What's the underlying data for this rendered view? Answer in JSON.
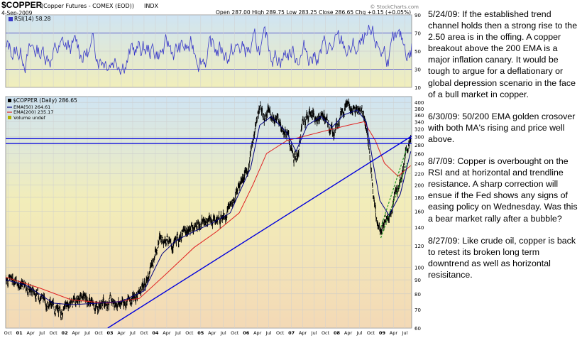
{
  "header": {
    "symbol": "$COPPER",
    "name": "(Copper Futures - COMEX (EOD))",
    "exchange": "INDX",
    "date": "4-Sep-2009",
    "quote": "Open 287.00  High 289.75  Low 283.25  Close 286.65  Chg +0.15 (+0.05%)",
    "watermark": "© StockCharts.com"
  },
  "chart_data": [
    {
      "type": "line",
      "panel": "RSI",
      "label": "RSI(14) 58.28",
      "series": [
        {
          "name": "RSI(14)",
          "last": 58.28
        }
      ],
      "ylim": [
        10,
        90
      ],
      "yticks": [
        10,
        30,
        50,
        70,
        90
      ],
      "reference_lines": [
        30,
        70
      ],
      "color": "#3333cc",
      "background": [
        "#cfe3f2",
        "#f2eeba"
      ]
    },
    {
      "type": "line",
      "panel": "price",
      "title": "$COPPER (Daily) 286.65",
      "legend": [
        {
          "label": "EMA(50) 264.61",
          "color": "#000080"
        },
        {
          "label": "EMA(200) 235.17",
          "color": "#e02020"
        },
        {
          "label": "Volume undef",
          "color": "#b0b000"
        }
      ],
      "legend_position": "top-left",
      "y_scale": "log",
      "ylim": [
        60,
        420
      ],
      "yticks": [
        60,
        70,
        80,
        90,
        100,
        120,
        140,
        160,
        180,
        200,
        220,
        240,
        260,
        280,
        300,
        320,
        340,
        360,
        380,
        400
      ],
      "x_labels": [
        "Oct",
        "01",
        "Apr",
        "Jul",
        "Oct",
        "02",
        "Apr",
        "Jul",
        "Oct",
        "03",
        "Apr",
        "Jul",
        "Oct",
        "04",
        "Apr",
        "Jul",
        "Oct",
        "05",
        "Apr",
        "Jul",
        "Oct",
        "06",
        "Apr",
        "Jul",
        "Oct",
        "07",
        "Apr",
        "Jul",
        "Oct",
        "08",
        "Apr",
        "Jul",
        "Oct",
        "09",
        "Apr",
        "Jul"
      ],
      "x_range": [
        2000.75,
        2009.7
      ],
      "price_points": [
        [
          2000.75,
          92
        ],
        [
          2000.95,
          90
        ],
        [
          2001.15,
          85
        ],
        [
          2001.45,
          80
        ],
        [
          2001.75,
          73
        ],
        [
          2001.95,
          68
        ],
        [
          2002.15,
          74
        ],
        [
          2002.45,
          78
        ],
        [
          2002.75,
          72
        ],
        [
          2003.0,
          75
        ],
        [
          2003.3,
          74
        ],
        [
          2003.6,
          78
        ],
        [
          2003.85,
          88
        ],
        [
          2003.95,
          100
        ],
        [
          2004.15,
          128
        ],
        [
          2004.3,
          130
        ],
        [
          2004.4,
          118
        ],
        [
          2004.6,
          130
        ],
        [
          2004.85,
          140
        ],
        [
          2005.0,
          143
        ],
        [
          2005.2,
          148
        ],
        [
          2005.45,
          150
        ],
        [
          2005.6,
          158
        ],
        [
          2005.8,
          180
        ],
        [
          2005.95,
          210
        ],
        [
          2006.1,
          230
        ],
        [
          2006.25,
          320
        ],
        [
          2006.35,
          390
        ],
        [
          2006.45,
          350
        ],
        [
          2006.55,
          370
        ],
        [
          2006.7,
          350
        ],
        [
          2006.85,
          330
        ],
        [
          2006.98,
          300
        ],
        [
          2007.1,
          245
        ],
        [
          2007.2,
          260
        ],
        [
          2007.3,
          340
        ],
        [
          2007.45,
          370
        ],
        [
          2007.6,
          350
        ],
        [
          2007.75,
          360
        ],
        [
          2007.9,
          320
        ],
        [
          2008.0,
          310
        ],
        [
          2008.15,
          375
        ],
        [
          2008.3,
          395
        ],
        [
          2008.45,
          370
        ],
        [
          2008.6,
          380
        ],
        [
          2008.7,
          330
        ],
        [
          2008.78,
          250
        ],
        [
          2008.85,
          190
        ],
        [
          2008.92,
          150
        ],
        [
          2009.0,
          140
        ],
        [
          2009.1,
          145
        ],
        [
          2009.25,
          160
        ],
        [
          2009.4,
          200
        ],
        [
          2009.5,
          225
        ],
        [
          2009.6,
          270
        ],
        [
          2009.68,
          287
        ]
      ],
      "ema50_points": [
        [
          2000.75,
          90
        ],
        [
          2001.2,
          86
        ],
        [
          2001.8,
          74
        ],
        [
          2002.2,
          73
        ],
        [
          2002.8,
          74
        ],
        [
          2003.3,
          75
        ],
        [
          2003.8,
          82
        ],
        [
          2004.2,
          112
        ],
        [
          2004.5,
          125
        ],
        [
          2004.9,
          135
        ],
        [
          2005.3,
          145
        ],
        [
          2005.7,
          158
        ],
        [
          2005.95,
          195
        ],
        [
          2006.15,
          230
        ],
        [
          2006.35,
          330
        ],
        [
          2006.6,
          355
        ],
        [
          2006.95,
          310
        ],
        [
          2007.15,
          265
        ],
        [
          2007.4,
          330
        ],
        [
          2007.7,
          355
        ],
        [
          2007.95,
          325
        ],
        [
          2008.2,
          360
        ],
        [
          2008.5,
          375
        ],
        [
          2008.7,
          340
        ],
        [
          2008.85,
          240
        ],
        [
          2009.0,
          175
        ],
        [
          2009.2,
          155
        ],
        [
          2009.45,
          185
        ],
        [
          2009.68,
          265
        ]
      ],
      "ema200_points": [
        [
          2000.75,
          92
        ],
        [
          2001.5,
          84
        ],
        [
          2002.2,
          76
        ],
        [
          2003.0,
          74
        ],
        [
          2003.7,
          77
        ],
        [
          2004.3,
          95
        ],
        [
          2004.9,
          118
        ],
        [
          2005.4,
          135
        ],
        [
          2005.9,
          158
        ],
        [
          2006.2,
          200
        ],
        [
          2006.5,
          260
        ],
        [
          2006.95,
          290
        ],
        [
          2007.3,
          300
        ],
        [
          2007.8,
          315
        ],
        [
          2008.3,
          330
        ],
        [
          2008.65,
          340
        ],
        [
          2008.9,
          290
        ],
        [
          2009.1,
          240
        ],
        [
          2009.4,
          215
        ],
        [
          2009.68,
          235
        ]
      ],
      "trend_lines": [
        {
          "type": "support",
          "from": [
            2003.0,
            60
          ],
          "to": [
            2009.75,
            305
          ],
          "color": "#0000dd"
        },
        {
          "type": "horizontal",
          "y": 295,
          "color": "#0000dd"
        },
        {
          "type": "horizontal",
          "y": 283,
          "color": "#0000dd"
        },
        {
          "type": "channel",
          "from": [
            2009.02,
            140
          ],
          "to": [
            2009.6,
            275
          ],
          "color": "#229922",
          "style": "dashed"
        },
        {
          "type": "channel",
          "from": [
            2009.02,
            128
          ],
          "to": [
            2009.6,
            240
          ],
          "color": "#229922",
          "style": "dashed"
        }
      ]
    }
  ],
  "annotations": [
    "5/24/09:  If the established trend channel holds then a strong rise to the 2.50 area is in the offing. A copper breakout above the 200 EMA is a major inflation canary.  It would be tough to argue for a deflationary or global depression scenario in the face of a bull market in copper.",
    "6/30/09:  50/200 EMA golden crosover with both MA's rising and price well above.",
    "8/7/09:  Copper is overbought on the RSI and at horizontal and trendline resistance.  A sharp correction will ensue if the Fed shows any signs of easing policy on Wednesday.  Was this a bear market rally after a bubble?",
    "8/27/09:  Like crude oil, copper is back to retest its broken long term downtrend as well as horizontal resisitance."
  ]
}
